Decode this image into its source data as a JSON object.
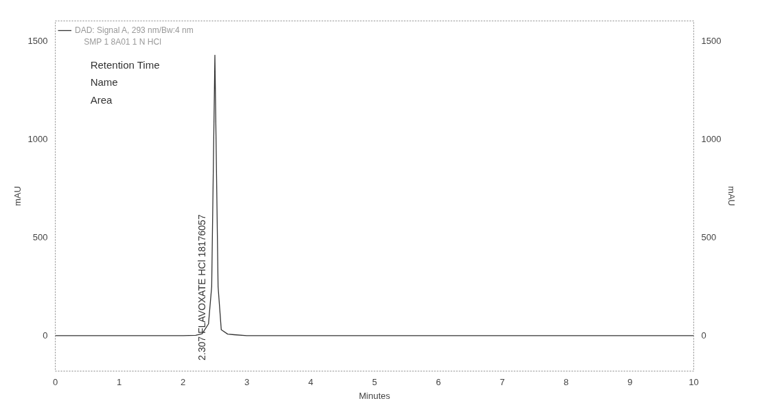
{
  "chart_data": {
    "type": "line",
    "xlabel": "Minutes",
    "ylabel": "mAU",
    "y2label": "mAU",
    "x": [
      0,
      1,
      2,
      2.2,
      2.3,
      2.4,
      2.45,
      2.5,
      2.55,
      2.6,
      2.7,
      2.8,
      3,
      4,
      5,
      6,
      7,
      8,
      9,
      10
    ],
    "series": [
      {
        "name": "DAD: Signal A, 293 nm/Bw:4 nm",
        "color": "#333333",
        "values": [
          0,
          0,
          0,
          2,
          10,
          60,
          250,
          1426,
          250,
          30,
          8,
          5,
          0,
          0,
          0,
          0,
          0,
          0,
          0,
          0
        ]
      }
    ],
    "xlim": [
      0,
      10
    ],
    "xticks": [
      0,
      1,
      2,
      3,
      4,
      5,
      6,
      7,
      8,
      9,
      10
    ],
    "ylim": [
      -180,
      1600
    ],
    "yticks": [
      0,
      500,
      1000,
      1500
    ],
    "y2lim": [
      -180,
      1600
    ],
    "y2ticks": [
      0,
      500,
      1000,
      1500
    ],
    "legend": "top left",
    "grid": false,
    "line_style": "solid",
    "marker": "none",
    "annotations": [
      "SMP 1 8A01 1 N HCl",
      "Retention Time",
      "Name",
      "Area",
      "2.307  FLAVOXATE HCl  18176057"
    ]
  }
}
